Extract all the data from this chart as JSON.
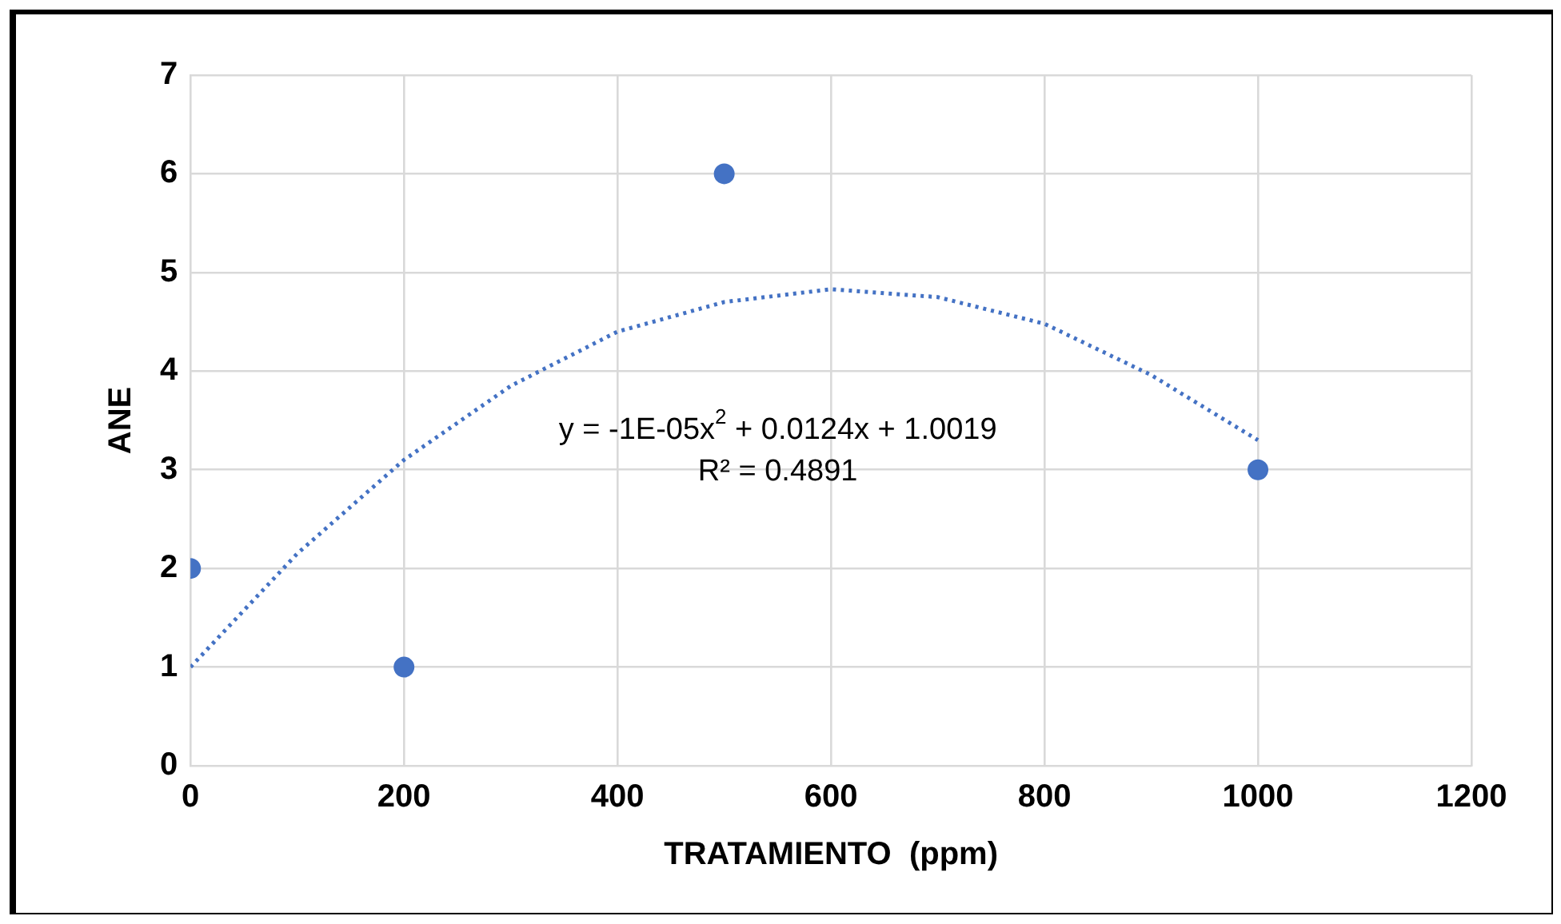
{
  "chart_data": {
    "type": "scatter",
    "xlabel": "TRATAMIENTO  (ppm)",
    "ylabel": "ANE",
    "xlim": [
      0,
      1200
    ],
    "xticks": [
      0,
      200,
      400,
      600,
      800,
      1000,
      1200
    ],
    "ylim": [
      0,
      7
    ],
    "yticks": [
      0,
      1,
      2,
      3,
      4,
      5,
      6,
      7
    ],
    "grid": true,
    "legend": false,
    "marker": "circle",
    "series": [
      {
        "color": "#4472c4",
        "x": [
          0,
          200,
          500,
          1000
        ],
        "values": [
          2,
          1,
          6,
          3
        ]
      },
      {
        "type": "line",
        "color": "#4472c4",
        "line_style": "dotted",
        "marker": "none",
        "x": [
          0,
          100,
          200,
          300,
          400,
          500,
          600,
          700,
          800,
          900,
          1000
        ],
        "values": [
          1.0,
          2.15,
          3.1,
          3.85,
          4.4,
          4.7,
          4.83,
          4.75,
          4.48,
          3.96,
          3.3
        ]
      }
    ],
    "annotations": [
      "y = -1E-05x$^{2}$ + 0.0124x + 1.0019",
      "R² = 0.4891"
    ]
  }
}
